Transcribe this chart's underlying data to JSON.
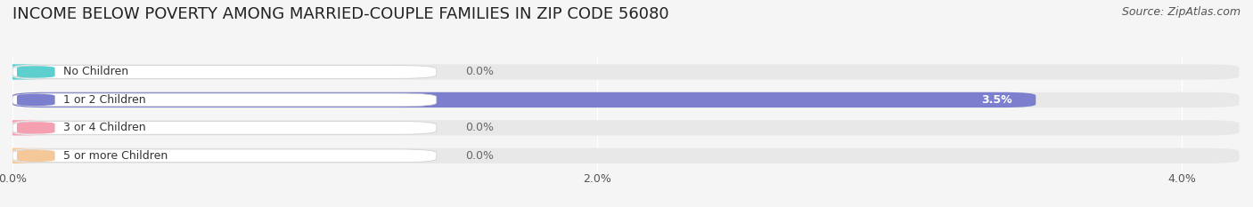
{
  "title": "INCOME BELOW POVERTY AMONG MARRIED-COUPLE FAMILIES IN ZIP CODE 56080",
  "source": "Source: ZipAtlas.com",
  "categories": [
    "No Children",
    "1 or 2 Children",
    "3 or 4 Children",
    "5 or more Children"
  ],
  "values": [
    0.0,
    3.5,
    0.0,
    0.0
  ],
  "bar_colors": [
    "#5ecfcf",
    "#7b7fcd",
    "#f4a0b0",
    "#f5c89a"
  ],
  "xlim": [
    0,
    4.2
  ],
  "xticks": [
    0.0,
    2.0,
    4.0
  ],
  "xtick_labels": [
    "0.0%",
    "2.0%",
    "4.0%"
  ],
  "bg_color": "#f5f5f5",
  "bar_bg_color": "#e8e8e8",
  "title_fontsize": 13,
  "source_fontsize": 9,
  "bar_height": 0.55,
  "value_label_fontsize": 9
}
